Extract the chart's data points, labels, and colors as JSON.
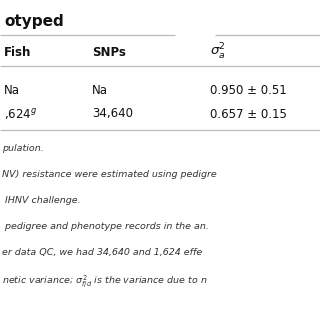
{
  "title": "otyped",
  "title_fontsize": 11,
  "title_bold": true,
  "col1_header": "Fish",
  "col2_header": "SNPs",
  "col3_header": "$\\sigma_a^2$",
  "row1": [
    "Na",
    "Na",
    "0.950 ± 0.51"
  ],
  "row2": [
    ",624$^g$",
    "34,640",
    "0.657 ± 0.15"
  ],
  "footnotes": [
    "pulation.",
    "NV) resistance were estimated using pedigre",
    " IHNV challenge.",
    " pedigree and phenotype records in the an.",
    "er data QC, we had 34,640 and 1,624 effe",
    "netic variance; $\\sigma^2_{f/d}$ is the variance due to n"
  ],
  "bg_color": "#ffffff",
  "line_color": "#bbbbbb",
  "text_color": "#111111",
  "footnote_color": "#333333",
  "header_fontsize": 8.5,
  "data_fontsize": 8.5,
  "footnote_fontsize": 6.8
}
